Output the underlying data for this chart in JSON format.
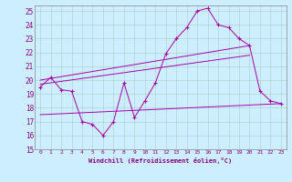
{
  "xlabel": "Windchill (Refroidissement éolien,°C)",
  "xlim": [
    -0.5,
    23.5
  ],
  "ylim": [
    15,
    25.4
  ],
  "yticks": [
    15,
    16,
    17,
    18,
    19,
    20,
    21,
    22,
    23,
    24,
    25
  ],
  "xticks": [
    0,
    1,
    2,
    3,
    4,
    5,
    6,
    7,
    8,
    9,
    10,
    11,
    12,
    13,
    14,
    15,
    16,
    17,
    18,
    19,
    20,
    21,
    22,
    23
  ],
  "bg_color": "#cceeff",
  "line_color": "#aa00aa",
  "grid_color": "#aacccc",
  "series": [
    {
      "x": [
        0,
        1,
        2,
        3,
        4,
        5,
        6,
        7,
        8,
        9,
        10,
        11,
        12,
        13,
        14,
        15,
        16,
        17,
        18,
        19,
        20,
        21,
        22,
        23
      ],
      "y": [
        19.5,
        20.2,
        19.3,
        19.2,
        17.0,
        16.8,
        16.0,
        17.0,
        19.8,
        17.3,
        18.5,
        19.8,
        21.9,
        23.0,
        23.8,
        25.0,
        25.2,
        24.0,
        23.8,
        23.0,
        22.5,
        19.2,
        18.5,
        18.3
      ]
    },
    {
      "x": [
        0,
        20
      ],
      "y": [
        20.0,
        22.5
      ]
    },
    {
      "x": [
        0,
        20
      ],
      "y": [
        19.7,
        21.8
      ]
    },
    {
      "x": [
        0,
        23
      ],
      "y": [
        17.5,
        18.3
      ]
    }
  ]
}
